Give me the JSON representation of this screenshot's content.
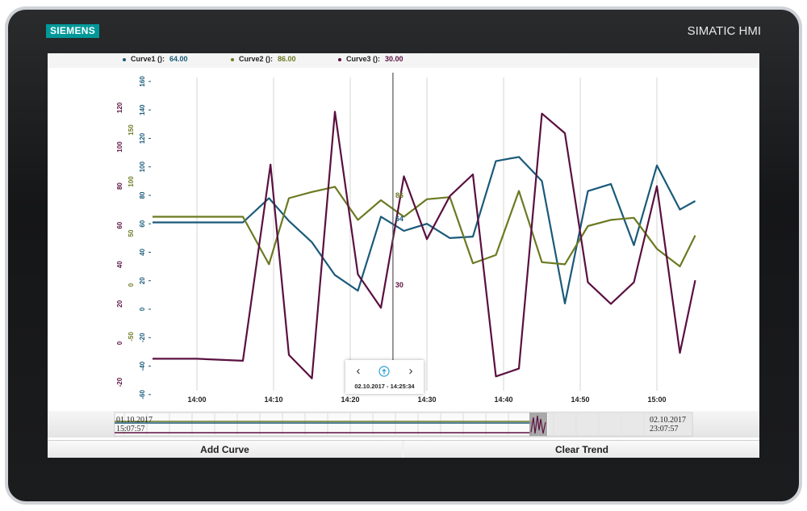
{
  "device": {
    "logo": "SIEMENS",
    "brand": "SIMATIC HMI"
  },
  "legend": [
    {
      "name": "Curve1",
      "unit": "():",
      "value": "64.00",
      "color": "#1a5a7a"
    },
    {
      "name": "Curve2",
      "unit": "():",
      "value": "86.00",
      "color": "#6b7a22"
    },
    {
      "name": "Curve3",
      "unit": "():",
      "value": "30.00",
      "color": "#5a1040"
    }
  ],
  "navigator": {
    "prev_icon": "chevron-left-icon",
    "center_icon": "info-circle-icon",
    "next_icon": "chevron-right-icon",
    "timestamp": "02.10.2017 - 14:25:34"
  },
  "overview": {
    "start_date": "01.10.2017",
    "start_time": "15:07:57",
    "end_date": "02.10.2017",
    "end_time": "23:07:57"
  },
  "buttons": {
    "add_curve": "Add Curve",
    "clear_trend": "Clear Trend"
  },
  "chart_data": {
    "type": "line",
    "x_ticks": [
      "14:00",
      "14:10",
      "14:20",
      "14:30",
      "14:40",
      "14:50",
      "15:00"
    ],
    "cursor": {
      "time": "14:25:34",
      "labels": [
        "86",
        "64",
        "30"
      ]
    },
    "axes": [
      {
        "series": "Curve1",
        "color": "#1a5a7a",
        "range": [
          -60,
          160
        ],
        "ticks": [
          "160",
          "140",
          "120",
          "100",
          "80",
          "60",
          "40",
          "20",
          "0",
          "-20",
          "-40",
          "-60"
        ]
      },
      {
        "series": "Curve2",
        "color": "#6b7a22",
        "range": [
          -75,
          175
        ],
        "ticks": [
          "150",
          "100",
          "50",
          "0",
          "-50"
        ]
      },
      {
        "series": "Curve3",
        "color": "#5a1040",
        "range": [
          -30,
          150
        ],
        "ticks": [
          "120",
          "100",
          "80",
          "60",
          "40",
          "20",
          "0",
          "-20"
        ]
      }
    ],
    "series": [
      {
        "name": "Curve1",
        "color": "#1a5a7a",
        "points": [
          [
            -6,
            61
          ],
          [
            0,
            61
          ],
          [
            6,
            61
          ],
          [
            9.4,
            78
          ],
          [
            12,
            62
          ],
          [
            15,
            47
          ],
          [
            18,
            24
          ],
          [
            21,
            13
          ],
          [
            24,
            65
          ],
          [
            27,
            55
          ],
          [
            30,
            60
          ],
          [
            33,
            50
          ],
          [
            36,
            51
          ],
          [
            39,
            104
          ],
          [
            42,
            107
          ],
          [
            45,
            90
          ],
          [
            48,
            4
          ],
          [
            51,
            83
          ],
          [
            54,
            88
          ],
          [
            57,
            45
          ],
          [
            60,
            101
          ],
          [
            63,
            70
          ],
          [
            65,
            76
          ]
        ]
      },
      {
        "name": "Curve2",
        "color": "#6b7a22",
        "points": [
          [
            -6,
            66
          ],
          [
            0,
            66
          ],
          [
            6,
            66
          ],
          [
            9.4,
            20
          ],
          [
            12,
            84
          ],
          [
            15,
            90
          ],
          [
            18,
            95
          ],
          [
            21,
            63
          ],
          [
            24,
            82
          ],
          [
            27,
            66
          ],
          [
            30,
            83
          ],
          [
            33,
            85
          ],
          [
            36,
            21
          ],
          [
            39,
            29
          ],
          [
            42,
            91
          ],
          [
            45,
            22
          ],
          [
            48,
            20
          ],
          [
            51,
            57
          ],
          [
            54,
            63
          ],
          [
            57,
            65
          ],
          [
            60,
            35
          ],
          [
            63,
            18
          ],
          [
            65,
            48
          ]
        ]
      },
      {
        "name": "Curve3",
        "color": "#5a1040",
        "points": [
          [
            -6,
            -8
          ],
          [
            0,
            -8
          ],
          [
            6,
            -9
          ],
          [
            9.6,
            91
          ],
          [
            12,
            -6
          ],
          [
            15,
            -18
          ],
          [
            18,
            118
          ],
          [
            21,
            35
          ],
          [
            24,
            18
          ],
          [
            27,
            85
          ],
          [
            30,
            53
          ],
          [
            33,
            75
          ],
          [
            36,
            86
          ],
          [
            39,
            -17
          ],
          [
            42,
            -13
          ],
          [
            45,
            117
          ],
          [
            48,
            107
          ],
          [
            51,
            31
          ],
          [
            54,
            20
          ],
          [
            57,
            31
          ],
          [
            60,
            80
          ],
          [
            63,
            -5
          ],
          [
            65,
            32
          ]
        ]
      }
    ]
  }
}
